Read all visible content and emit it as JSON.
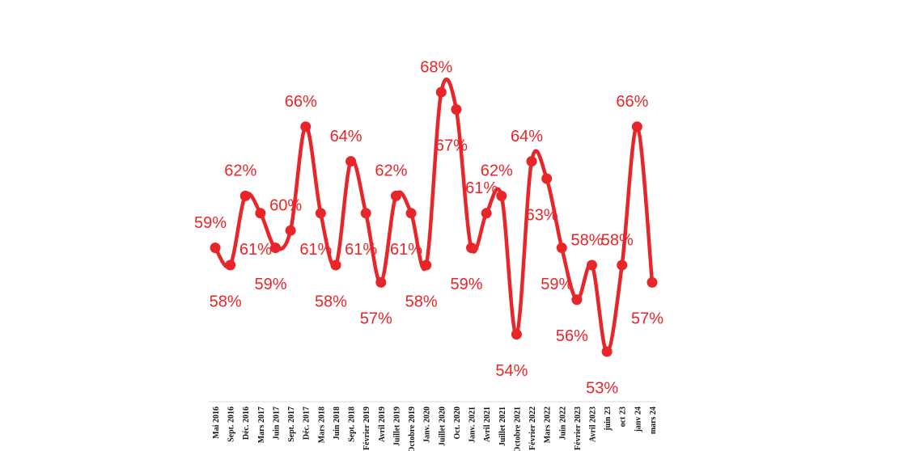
{
  "chart_data": {
    "type": "line",
    "title": "",
    "xlabel": "",
    "ylabel": "",
    "categories": [
      "Mai 2016",
      "Sept. 2016",
      "Déc. 2016",
      "Mars 2017",
      "Juin 2017",
      "Sept. 2017",
      "Déc. 2017",
      "Mars 2018",
      "Juin 2018",
      "Sept. 2018",
      "Février 2019",
      "Avril 2019",
      "Juillet 2019",
      "Octobre 2019",
      "Janv. 2020",
      "Juillet 2020",
      "Oct. 2020",
      "Janv. 2021",
      "Avril 2021",
      "Juillet 2021",
      "Octobre 2021",
      "Février 2022",
      "Mars 2022",
      "Juin 2022",
      "Février 2023",
      "Avril 2023",
      "juin 23",
      "oct 23",
      "janv 24",
      "mars 24"
    ],
    "series": [
      {
        "values": [
          59,
          58,
          62,
          61,
          59,
          60,
          66,
          61,
          58,
          64,
          61,
          57,
          62,
          61,
          58,
          68,
          67,
          59,
          61,
          62,
          54,
          64,
          63,
          59,
          56,
          58,
          53,
          58,
          66,
          57
        ],
        "labels": [
          "59%",
          "58%",
          "62%",
          "61%",
          "59%",
          "60%",
          "66%",
          "61%",
          "58%",
          "64%",
          "61%",
          "57%",
          "62%",
          "61%",
          "58%",
          "68%",
          "67%",
          "59%",
          "61%",
          "62%",
          "54%",
          "64%",
          "63%",
          "59%",
          "56%",
          "58%",
          "53%",
          "58%",
          "66%",
          "57%"
        ],
        "color": "#e8262a"
      }
    ],
    "ylim": [
      50,
      70
    ],
    "grid": false,
    "legend": "none"
  }
}
